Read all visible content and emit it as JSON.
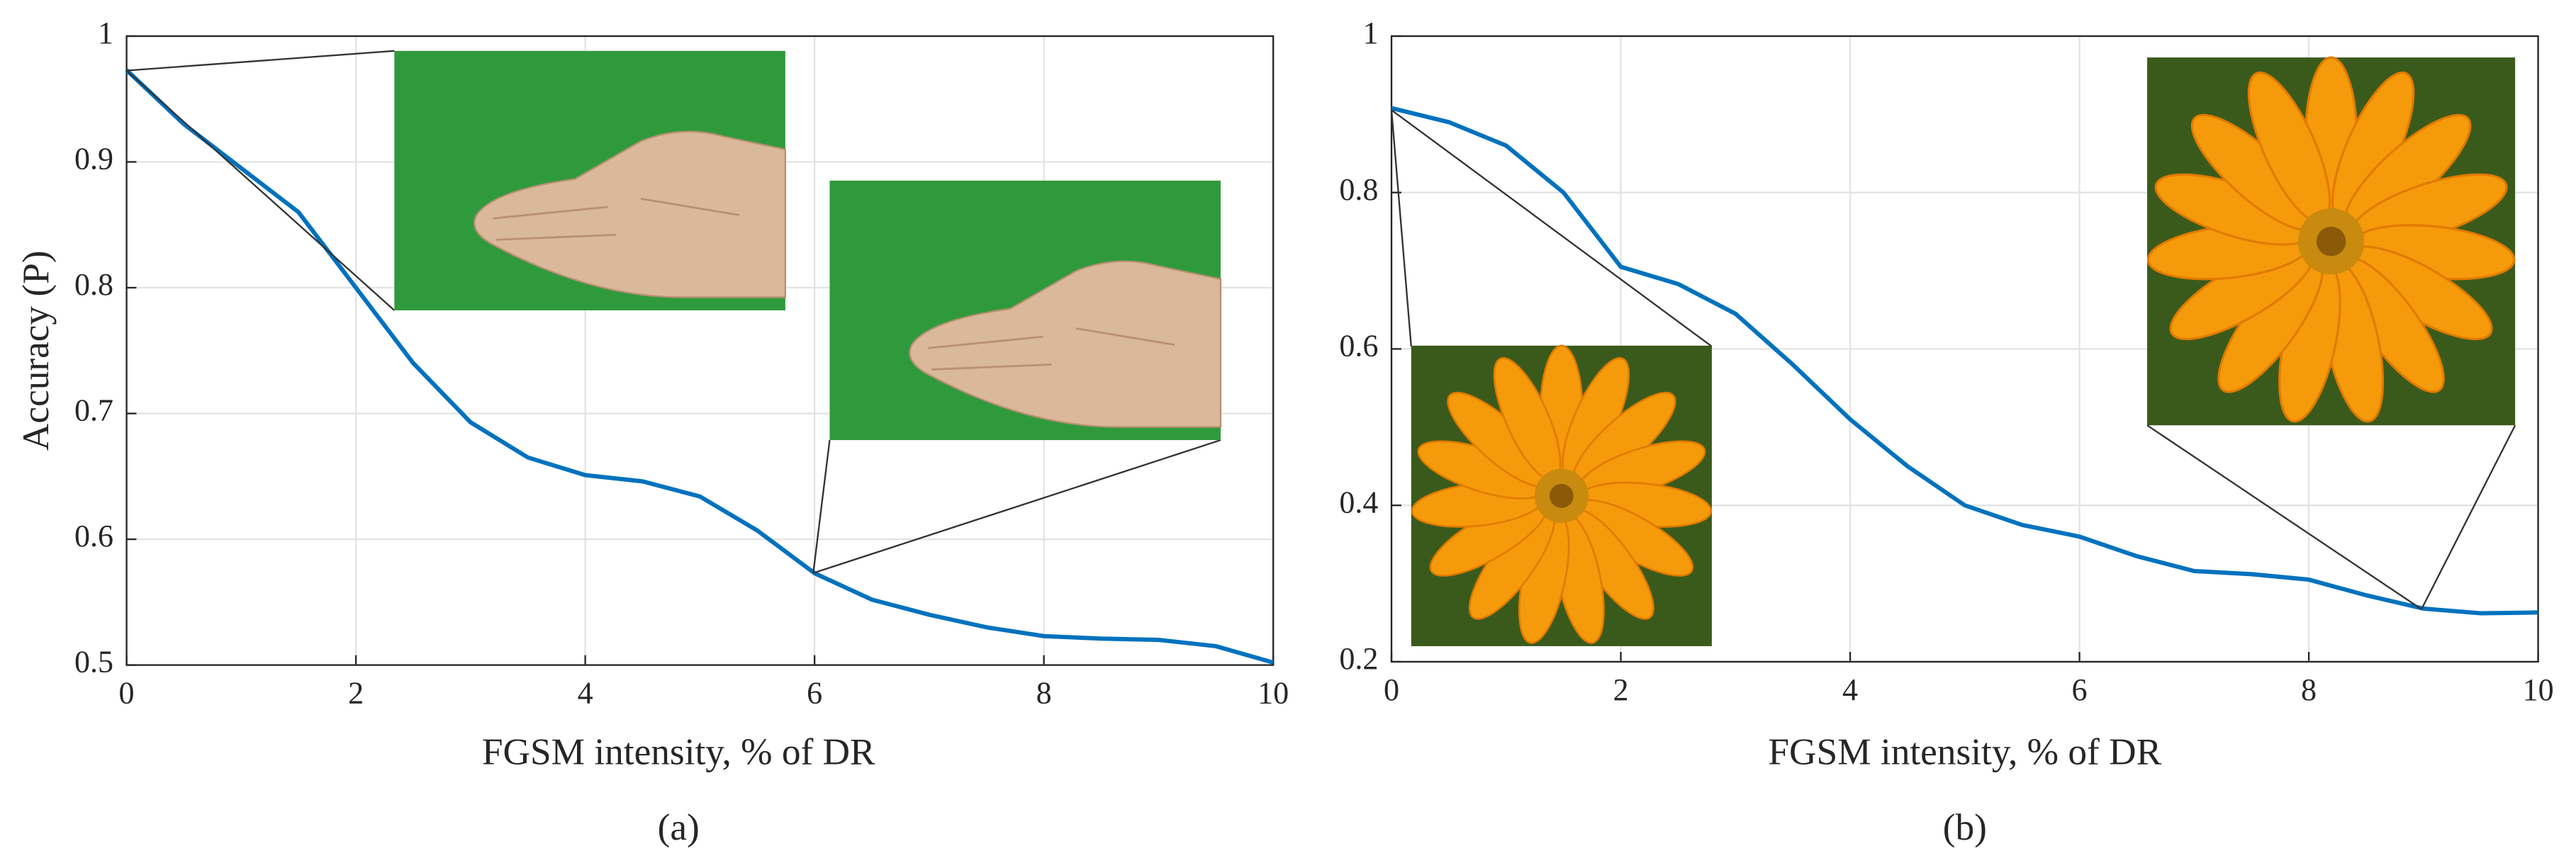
{
  "chart_data": [
    {
      "type": "line",
      "ylabel": "Accuracy (P)",
      "xlabel": "FGSM intensity, % of DR",
      "caption": "(a)",
      "x": [
        0,
        0.5,
        1,
        1.5,
        2,
        2.5,
        3,
        3.5,
        4,
        4.5,
        5,
        5.5,
        6,
        6.5,
        7,
        7.5,
        8,
        8.5,
        9,
        9.5,
        10
      ],
      "values": [
        0.973,
        0.93,
        0.895,
        0.86,
        0.8,
        0.74,
        0.693,
        0.665,
        0.651,
        0.646,
        0.634,
        0.607,
        0.573,
        0.552,
        0.54,
        0.53,
        0.523,
        0.521,
        0.52,
        0.515,
        0.502
      ],
      "color": "#0072bd",
      "xlim": [
        0,
        10
      ],
      "ylim": [
        0.5,
        1
      ],
      "xticks": [
        0,
        2,
        4,
        6,
        8,
        10
      ],
      "yticks": [
        0.5,
        0.6,
        0.7,
        0.8,
        0.9,
        1
      ],
      "grid": true
    },
    {
      "type": "line",
      "xlabel": "FGSM intensity, % of DR",
      "caption": "(b)",
      "x": [
        0,
        0.5,
        1,
        1.5,
        2,
        2.5,
        3,
        3.5,
        4,
        4.5,
        5,
        5.5,
        6,
        6.5,
        7,
        7.5,
        8,
        8.5,
        9,
        9.5,
        10
      ],
      "values": [
        0.908,
        0.89,
        0.86,
        0.8,
        0.705,
        0.683,
        0.645,
        0.58,
        0.51,
        0.45,
        0.4,
        0.375,
        0.36,
        0.335,
        0.316,
        0.312,
        0.305,
        0.285,
        0.268,
        0.262,
        0.263
      ],
      "color": "#0072bd",
      "xlim": [
        0,
        10
      ],
      "ylim": [
        0.2,
        1
      ],
      "xticks": [
        0,
        2,
        4,
        6,
        8,
        10
      ],
      "yticks": [
        0.2,
        0.4,
        0.6,
        0.8,
        1
      ],
      "grid": true
    }
  ]
}
